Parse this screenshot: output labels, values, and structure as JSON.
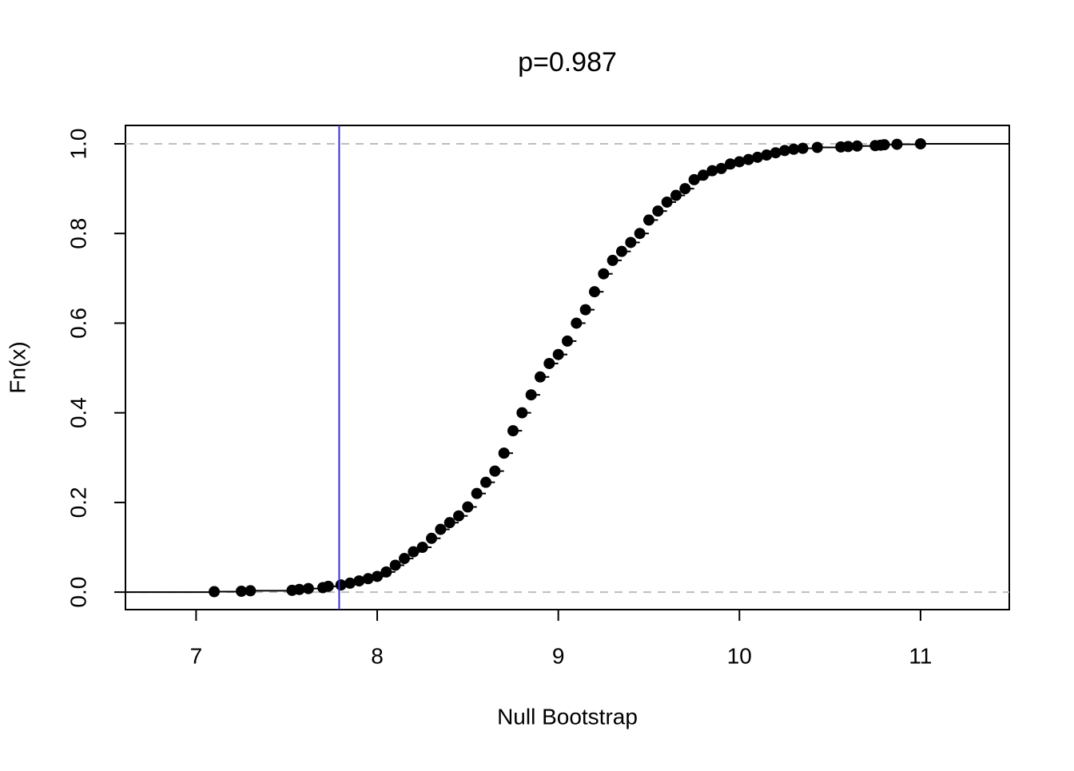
{
  "chart_data": {
    "type": "ecdf",
    "title": "p=0.987",
    "xlabel": "Null Bootstrap",
    "ylabel": "Fn(x)",
    "x": [
      7.1,
      7.25,
      7.3,
      7.53,
      7.57,
      7.62,
      7.7,
      7.73,
      7.8,
      7.85,
      7.9,
      7.95,
      8.0,
      8.05,
      8.1,
      8.15,
      8.2,
      8.25,
      8.3,
      8.35,
      8.4,
      8.45,
      8.5,
      8.55,
      8.6,
      8.65,
      8.7,
      8.75,
      8.8,
      8.85,
      8.9,
      8.95,
      9.0,
      9.05,
      9.1,
      9.15,
      9.2,
      9.25,
      9.3,
      9.35,
      9.4,
      9.45,
      9.5,
      9.55,
      9.6,
      9.65,
      9.7,
      9.75,
      9.8,
      9.85,
      9.9,
      9.95,
      10.0,
      10.05,
      10.1,
      10.15,
      10.2,
      10.25,
      10.3,
      10.35,
      10.43,
      10.56,
      10.6,
      10.65,
      10.75,
      10.78,
      10.8,
      10.87,
      11.0
    ],
    "values": [
      0.001,
      0.002,
      0.003,
      0.004,
      0.006,
      0.008,
      0.01,
      0.013,
      0.016,
      0.02,
      0.025,
      0.03,
      0.035,
      0.045,
      0.06,
      0.075,
      0.09,
      0.1,
      0.12,
      0.14,
      0.155,
      0.17,
      0.19,
      0.22,
      0.245,
      0.27,
      0.31,
      0.36,
      0.4,
      0.44,
      0.48,
      0.51,
      0.53,
      0.56,
      0.6,
      0.63,
      0.67,
      0.71,
      0.74,
      0.76,
      0.78,
      0.8,
      0.83,
      0.85,
      0.87,
      0.885,
      0.9,
      0.92,
      0.93,
      0.94,
      0.945,
      0.955,
      0.96,
      0.965,
      0.97,
      0.975,
      0.98,
      0.985,
      0.988,
      0.99,
      0.992,
      0.993,
      0.994,
      0.995,
      0.996,
      0.997,
      0.998,
      0.999,
      1.0
    ],
    "color": "#000000",
    "xlim": [
      6.61,
      11.49
    ],
    "ylim": [
      -0.039,
      1.041
    ],
    "xticks": [
      7,
      8,
      9,
      10,
      11
    ],
    "yticks": [
      {
        "value": 0,
        "label": "0.0"
      },
      {
        "value": 0.2,
        "label": "0.2"
      },
      {
        "value": 0.4,
        "label": "0.4"
      },
      {
        "value": 0.6,
        "label": "0.6"
      },
      {
        "value": 0.8,
        "label": "0.8"
      },
      {
        "value": 1,
        "label": "1.0"
      }
    ],
    "hlines": [
      0,
      1
    ],
    "hline_color": "#bebebe",
    "vline": 7.79,
    "vline_color": "#3333cc"
  }
}
